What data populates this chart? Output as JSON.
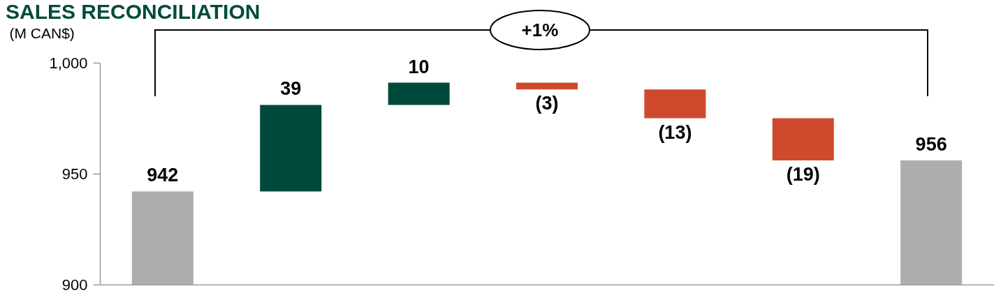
{
  "chart_data": {
    "type": "bar",
    "title": "SALES RECONCILIATION",
    "ylabel": "(M CAN$)",
    "categories": [
      null,
      null,
      null,
      null,
      null,
      null,
      null
    ],
    "values": [
      942,
      39,
      10,
      -3,
      -13,
      -19,
      956
    ],
    "base": [
      null,
      942,
      981,
      991,
      988,
      975,
      null
    ],
    "colors": [
      "#adadad",
      "#004a3c",
      "#004a3c",
      "#cf4a2d",
      "#cf4a2d",
      "#cf4a2d",
      "#adadad"
    ],
    "value_labels": [
      "942",
      "39",
      "10",
      "(3)",
      "(13)",
      "(19)",
      "956"
    ],
    "ylim": [
      900,
      1000
    ],
    "yticks": [
      900,
      950,
      {
        "value": 1000,
        "label": "1,000"
      }
    ],
    "annotations": [
      "+1%"
    ]
  }
}
